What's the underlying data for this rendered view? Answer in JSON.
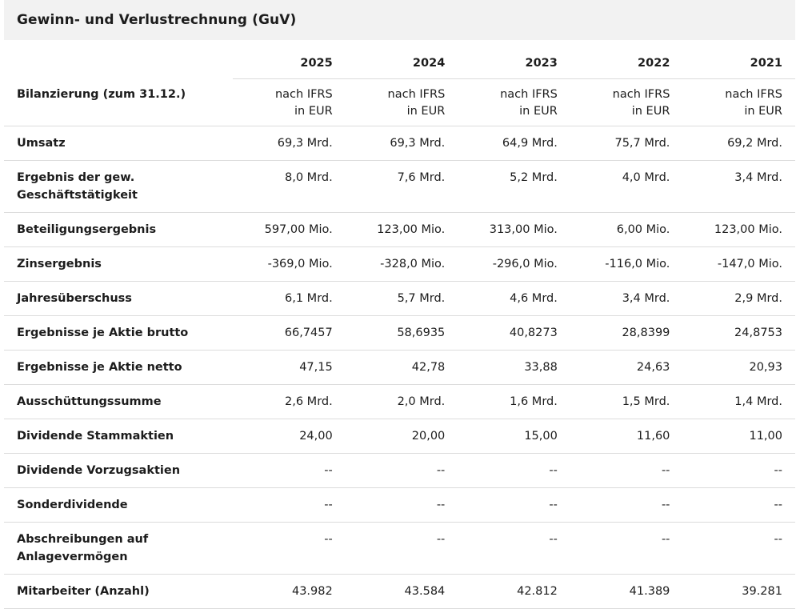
{
  "section": {
    "title": "Gewinn- und Verlustrechnung (GuV)"
  },
  "years": [
    "2025",
    "2024",
    "2023",
    "2022",
    "2021"
  ],
  "basis": {
    "label": "Bilanzierung (zum 31.12.)",
    "line1": [
      "nach IFRS",
      "nach IFRS",
      "nach IFRS",
      "nach IFRS",
      "nach IFRS"
    ],
    "line2": [
      "in EUR",
      "in EUR",
      "in EUR",
      "in EUR",
      "in EUR"
    ]
  },
  "rows": [
    {
      "label": "Umsatz",
      "values": [
        "69,3 Mrd.",
        "69,3 Mrd.",
        "64,9 Mrd.",
        "75,7 Mrd.",
        "69,2 Mrd."
      ]
    },
    {
      "label": "Ergebnis der gew.",
      "label2": "Geschäftstätigkeit",
      "values": [
        "8,0 Mrd.",
        "7,6 Mrd.",
        "5,2 Mrd.",
        "4,0 Mrd.",
        "3,4 Mrd."
      ]
    },
    {
      "label": "Beteiligungsergebnis",
      "values": [
        "597,00 Mio.",
        "123,00 Mio.",
        "313,00 Mio.",
        "6,00 Mio.",
        "123,00 Mio."
      ]
    },
    {
      "label": "Zinsergebnis",
      "values": [
        "-369,0 Mio.",
        "-328,0 Mio.",
        "-296,0 Mio.",
        "-116,0 Mio.",
        "-147,0 Mio."
      ]
    },
    {
      "label": "Jahresüberschuss",
      "values": [
        "6,1 Mrd.",
        "5,7 Mrd.",
        "4,6 Mrd.",
        "3,4 Mrd.",
        "2,9 Mrd."
      ]
    },
    {
      "label": "Ergebnisse je Aktie brutto",
      "values": [
        "66,7457",
        "58,6935",
        "40,8273",
        "28,8399",
        "24,8753"
      ]
    },
    {
      "label": "Ergebnisse je Aktie netto",
      "values": [
        "47,15",
        "42,78",
        "33,88",
        "24,63",
        "20,93"
      ]
    },
    {
      "label": "Ausschüttungssumme",
      "values": [
        "2,6 Mrd.",
        "2,0 Mrd.",
        "1,6 Mrd.",
        "1,5 Mrd.",
        "1,4 Mrd."
      ]
    },
    {
      "label": "Dividende Stammaktien",
      "values": [
        "24,00",
        "20,00",
        "15,00",
        "11,60",
        "11,00"
      ]
    },
    {
      "label": "Dividende Vorzugsaktien",
      "values": [
        "--",
        "--",
        "--",
        "--",
        "--"
      ]
    },
    {
      "label": "Sonderdividende",
      "values": [
        "--",
        "--",
        "--",
        "--",
        "--"
      ]
    },
    {
      "label": "Abschreibungen auf",
      "label2": "Anlagevermögen",
      "values": [
        "--",
        "--",
        "--",
        "--",
        "--"
      ]
    },
    {
      "label": "Mitarbeiter (Anzahl)",
      "values": [
        "43.982",
        "43.584",
        "42.812",
        "41.389",
        "39.281"
      ]
    }
  ]
}
